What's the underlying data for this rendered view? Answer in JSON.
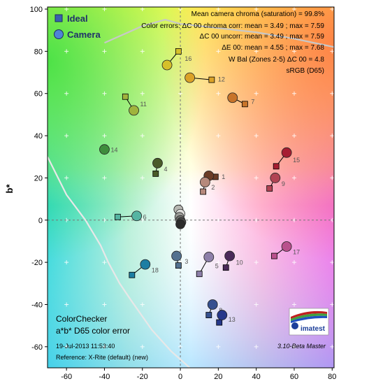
{
  "chart_data": {
    "type": "scatter",
    "xlabel": "",
    "ylabel": "b*",
    "xlim": [
      -70,
      81
    ],
    "ylim": [
      -70,
      101
    ],
    "xticks": [
      -60,
      -40,
      -20,
      0,
      20,
      40,
      60,
      80
    ],
    "yticks": [
      -60,
      -40,
      -20,
      0,
      20,
      40,
      60,
      80,
      100
    ],
    "legend": {
      "position": "top-left",
      "items": [
        {
          "label": "Ideal",
          "marker": "square",
          "color": "#3a5fb0"
        },
        {
          "label": "Camera",
          "marker": "circle",
          "color": "#4f84d6"
        }
      ]
    },
    "stats": [
      "Mean camera chroma (saturation) = 99.8%",
      "Color errors: ΔC 00 chroma corr:  mean = 3.49 ;  max = 7.59",
      "ΔC 00 uncorr:  mean = 3.49 ;  max = 7.59",
      "ΔE 00:  mean = 4.55 ;  max = 7.68",
      "W Bal (Zones 2-5) ΔC 00 = 4.8",
      "sRGB (D65)"
    ],
    "title_block": [
      "ColorChecker",
      "a*b* D65 color error"
    ],
    "footer": {
      "date": "19-Jul-2013 11:53:40",
      "reference": "Reference: X-Rite (default) (new)",
      "version": "3.10-Beta  Master",
      "logo": "imatest"
    },
    "patches": [
      {
        "id": "1",
        "ideal": [
          18.5,
          20.5
        ],
        "camera": [
          15,
          21
        ],
        "color": "#6b3c26"
      },
      {
        "id": "2",
        "ideal": [
          12,
          13.5
        ],
        "camera": [
          13,
          18
        ],
        "color": "#b6897c"
      },
      {
        "id": "3",
        "ideal": [
          -1,
          -21.5
        ],
        "camera": [
          -2,
          -17
        ],
        "color": "#53718f"
      },
      {
        "id": "4",
        "ideal": [
          -13,
          22
        ],
        "camera": [
          -12,
          27
        ],
        "color": "#4a5b28"
      },
      {
        "id": "5",
        "ideal": [
          10,
          -25.5
        ],
        "camera": [
          15,
          -17.5
        ],
        "color": "#8d7fa9"
      },
      {
        "id": "6",
        "ideal": [
          -33,
          1.5
        ],
        "camera": [
          -23,
          2
        ],
        "color": "#55b4a2"
      },
      {
        "id": "7",
        "ideal": [
          34,
          55
        ],
        "camera": [
          27.5,
          58
        ],
        "color": "#c8742a"
      },
      {
        "id": "8",
        "ideal": [
          15,
          -45
        ],
        "camera": [
          17,
          -40
        ],
        "color": "#36508f"
      },
      {
        "id": "9",
        "ideal": [
          47,
          15
        ],
        "camera": [
          50,
          20
        ],
        "color": "#b14353"
      },
      {
        "id": "10",
        "ideal": [
          24,
          -22.5
        ],
        "camera": [
          26,
          -17
        ],
        "color": "#4a2a5a"
      },
      {
        "id": "11",
        "ideal": [
          -29,
          58.5
        ],
        "camera": [
          -24.5,
          52
        ],
        "color": "#a0b33d"
      },
      {
        "id": "12",
        "ideal": [
          16.5,
          66.5
        ],
        "camera": [
          5,
          67.5
        ],
        "color": "#dba228"
      },
      {
        "id": "13",
        "ideal": [
          20.5,
          -48.5
        ],
        "camera": [
          22,
          -45
        ],
        "color": "#25378a"
      },
      {
        "id": "14",
        "ideal": [
          -40,
          33.5
        ],
        "camera": [
          -40,
          33.5
        ],
        "color": "#3f8d3d"
      },
      {
        "id": "15",
        "ideal": [
          50.5,
          25.5
        ],
        "camera": [
          56,
          32
        ],
        "color": "#a61e32"
      },
      {
        "id": "16",
        "ideal": [
          -1,
          80
        ],
        "camera": [
          -7,
          73.5
        ],
        "color": "#d6c02a"
      },
      {
        "id": "17",
        "ideal": [
          49.5,
          -17
        ],
        "camera": [
          56,
          -12.5
        ],
        "color": "#b9518d"
      },
      {
        "id": "18",
        "ideal": [
          -25.5,
          -26
        ],
        "camera": [
          -18.5,
          -21
        ],
        "color": "#1d7ea3"
      }
    ],
    "neutrals": [
      {
        "camera": [
          -1,
          5
        ],
        "color": "#b7b7b2"
      },
      {
        "camera": [
          0,
          3
        ],
        "color": "#dededb"
      },
      {
        "camera": [
          -0.5,
          1.5
        ],
        "color": "#9a9a96"
      },
      {
        "camera": [
          0,
          0
        ],
        "color": "#6f6f6c"
      },
      {
        "camera": [
          0.5,
          -1
        ],
        "color": "#4a4a48"
      },
      {
        "camera": [
          0,
          -2
        ],
        "color": "#2c2c2b"
      }
    ],
    "gamut_boundary": [
      [
        -70,
        30
      ],
      [
        -60,
        12
      ],
      [
        -50,
        0
      ],
      [
        -42,
        -12
      ],
      [
        -38,
        -20
      ],
      [
        -32,
        -30
      ],
      [
        -26,
        -38
      ],
      [
        -15,
        -52
      ],
      [
        -5,
        -62
      ],
      [
        5,
        -70
      ]
    ],
    "upper_boundary": [
      [
        -40,
        84
      ],
      [
        -20,
        92
      ],
      [
        -8,
        95
      ],
      [
        0,
        93
      ],
      [
        20,
        91
      ],
      [
        40,
        89
      ],
      [
        60,
        86
      ],
      [
        81,
        82
      ]
    ]
  }
}
